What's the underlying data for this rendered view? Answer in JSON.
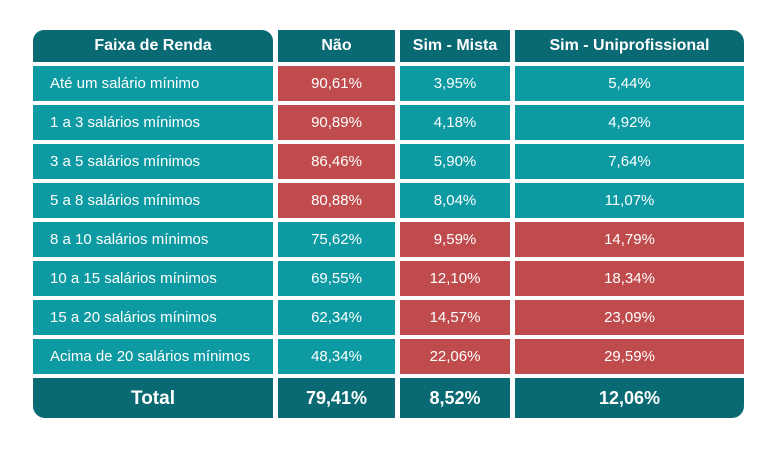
{
  "colors": {
    "header_teal": "#0a6a73",
    "row_teal": "#0d9aa2",
    "highlight_red": "#bf4b4d",
    "text_white": "#ffffff",
    "page_bg": "#ffffff"
  },
  "table": {
    "header": {
      "col0": "Faixa de Renda",
      "col1": "Não",
      "col2": "Sim - Mista",
      "col3": "Sim - Uniprofissional"
    },
    "rows": [
      {
        "label": "Até um salário mínimo",
        "nao": "90,61%",
        "sim_mista": "3,95%",
        "sim_uni": "5,44%"
      },
      {
        "label": "1 a 3 salários mínimos",
        "nao": "90,89%",
        "sim_mista": "4,18%",
        "sim_uni": "4,92%"
      },
      {
        "label": "3 a 5 salários mínimos",
        "nao": "86,46%",
        "sim_mista": "5,90%",
        "sim_uni": "7,64%"
      },
      {
        "label": "5 a 8 salários mínimos",
        "nao": "80,88%",
        "sim_mista": "8,04%",
        "sim_uni": "11,07%"
      },
      {
        "label": "8 a 10 salários mínimos",
        "nao": "75,62%",
        "sim_mista": "9,59%",
        "sim_uni": "14,79%"
      },
      {
        "label": "10 a 15 salários mínimos",
        "nao": "69,55%",
        "sim_mista": "12,10%",
        "sim_uni": "18,34%"
      },
      {
        "label": "15 a 20 salários mínimos",
        "nao": "62,34%",
        "sim_mista": "14,57%",
        "sim_uni": "23,09%"
      },
      {
        "label": "Acima de 20 salários mínimos",
        "nao": "48,34%",
        "sim_mista": "22,06%",
        "sim_uni": "29,59%"
      }
    ],
    "total": {
      "label": "Total",
      "nao": "79,41%",
      "sim_mista": "8,52%",
      "sim_uni": "12,06%"
    }
  },
  "chart_data": {
    "type": "table",
    "title": "",
    "unit": "%",
    "columns": [
      "Faixa de Renda",
      "Não",
      "Sim - Mista",
      "Sim - Uniprofissional"
    ],
    "rows": [
      [
        "Até um salário mínimo",
        90.61,
        3.95,
        5.44
      ],
      [
        "1 a 3 salários mínimos",
        90.89,
        4.18,
        4.92
      ],
      [
        "3 a 5 salários mínimos",
        86.46,
        5.9,
        7.64
      ],
      [
        "5 a 8 salários mínimos",
        80.88,
        8.04,
        11.07
      ],
      [
        "8 a 10 salários mínimos",
        75.62,
        9.59,
        14.79
      ],
      [
        "10 a 15 salários mínimos",
        69.55,
        12.1,
        18.34
      ],
      [
        "15 a 20 salários mínimos",
        62.34,
        14.57,
        23.09
      ],
      [
        "Acima de 20 salários mínimos",
        48.34,
        22.06,
        29.59
      ],
      [
        "Total",
        79.41,
        8.52,
        12.06
      ]
    ]
  }
}
